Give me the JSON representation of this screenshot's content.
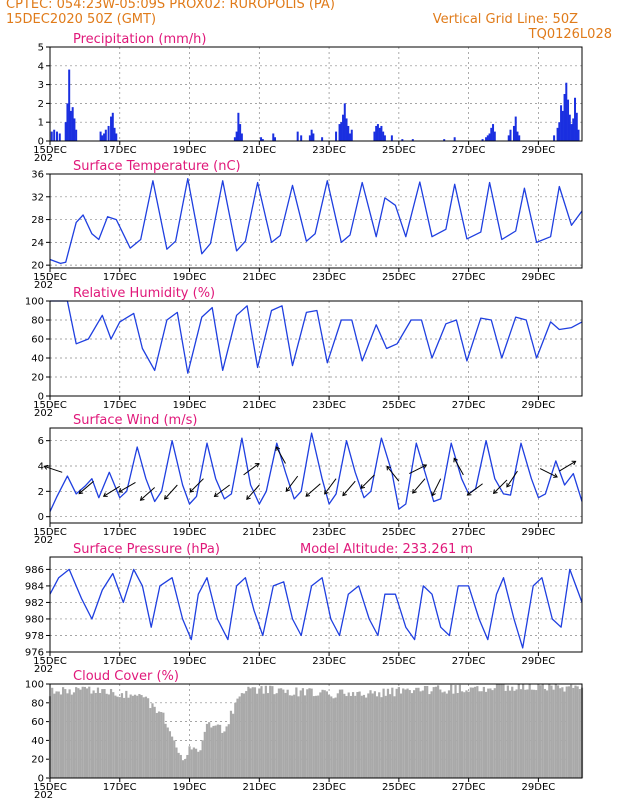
{
  "header": {
    "left_line1": "CPTEC:   054:23W-05:09S   PROX02: RUROPOLIS (PA)",
    "left_line2": "15DEC2020 50Z (GMT)",
    "right_line2": "Vertical Grid Line: 50Z",
    "right_line3": "TQ0126L028"
  },
  "colors": {
    "header": "#e07b1a",
    "title": "#e0187a",
    "line": "#1f3fe0",
    "bar": "#1a2fe0",
    "cloud": "#a9a9a9",
    "axis": "#000000"
  },
  "x_axis": {
    "tick_labels": [
      "15DEC",
      "17DEC",
      "19DEC",
      "21DEC",
      "23DEC",
      "25DEC",
      "27DEC",
      "29DEC"
    ],
    "sub_label": "202",
    "range_days": [
      0,
      15.25
    ],
    "tick_days": [
      0,
      2,
      4,
      6,
      8,
      10,
      12,
      14
    ]
  },
  "chart_data": [
    {
      "id": "precip",
      "type": "bar",
      "title": "Precipitation (mm/h)",
      "ylim": [
        0,
        5
      ],
      "yticks": [
        0,
        1,
        2,
        3,
        4,
        5
      ],
      "events": [
        {
          "t": 0.05,
          "v": 0.5
        },
        {
          "t": 0.12,
          "v": 0.6
        },
        {
          "t": 0.2,
          "v": 0.5
        },
        {
          "t": 0.28,
          "v": 0.4
        },
        {
          "t": 0.45,
          "v": 1.0
        },
        {
          "t": 0.5,
          "v": 2.0
        },
        {
          "t": 0.55,
          "v": 3.8
        },
        {
          "t": 0.6,
          "v": 1.6
        },
        {
          "t": 0.65,
          "v": 1.8
        },
        {
          "t": 0.7,
          "v": 1.2
        },
        {
          "t": 0.75,
          "v": 0.6
        },
        {
          "t": 1.45,
          "v": 0.5
        },
        {
          "t": 1.5,
          "v": 0.3
        },
        {
          "t": 1.55,
          "v": 0.4
        },
        {
          "t": 1.6,
          "v": 0.6
        },
        {
          "t": 1.68,
          "v": 0.8
        },
        {
          "t": 1.75,
          "v": 1.3
        },
        {
          "t": 1.8,
          "v": 1.5
        },
        {
          "t": 1.85,
          "v": 0.7
        },
        {
          "t": 1.9,
          "v": 0.4
        },
        {
          "t": 5.3,
          "v": 0.2
        },
        {
          "t": 5.35,
          "v": 0.5
        },
        {
          "t": 5.4,
          "v": 1.5
        },
        {
          "t": 5.45,
          "v": 0.9
        },
        {
          "t": 5.5,
          "v": 0.4
        },
        {
          "t": 6.05,
          "v": 0.2
        },
        {
          "t": 6.1,
          "v": 0.1
        },
        {
          "t": 6.4,
          "v": 0.4
        },
        {
          "t": 6.45,
          "v": 0.2
        },
        {
          "t": 7.1,
          "v": 0.5
        },
        {
          "t": 7.2,
          "v": 0.3
        },
        {
          "t": 7.45,
          "v": 0.3
        },
        {
          "t": 7.5,
          "v": 0.6
        },
        {
          "t": 7.55,
          "v": 0.4
        },
        {
          "t": 7.8,
          "v": 0.2
        },
        {
          "t": 8.2,
          "v": 0.5
        },
        {
          "t": 8.3,
          "v": 0.9
        },
        {
          "t": 8.35,
          "v": 1.0
        },
        {
          "t": 8.4,
          "v": 1.4
        },
        {
          "t": 8.45,
          "v": 2.0
        },
        {
          "t": 8.5,
          "v": 1.2
        },
        {
          "t": 8.55,
          "v": 0.8
        },
        {
          "t": 8.6,
          "v": 0.4
        },
        {
          "t": 8.65,
          "v": 0.6
        },
        {
          "t": 9.3,
          "v": 0.5
        },
        {
          "t": 9.35,
          "v": 0.8
        },
        {
          "t": 9.4,
          "v": 0.9
        },
        {
          "t": 9.45,
          "v": 0.7
        },
        {
          "t": 9.5,
          "v": 0.8
        },
        {
          "t": 9.55,
          "v": 0.5
        },
        {
          "t": 9.6,
          "v": 0.3
        },
        {
          "t": 9.8,
          "v": 0.3
        },
        {
          "t": 10.1,
          "v": 0.1
        },
        {
          "t": 10.4,
          "v": 0.1
        },
        {
          "t": 11.3,
          "v": 0.1
        },
        {
          "t": 11.6,
          "v": 0.2
        },
        {
          "t": 12.4,
          "v": 0.1
        },
        {
          "t": 12.5,
          "v": 0.2
        },
        {
          "t": 12.55,
          "v": 0.3
        },
        {
          "t": 12.6,
          "v": 0.4
        },
        {
          "t": 12.65,
          "v": 0.7
        },
        {
          "t": 12.7,
          "v": 0.9
        },
        {
          "t": 12.75,
          "v": 0.5
        },
        {
          "t": 13.15,
          "v": 0.3
        },
        {
          "t": 13.2,
          "v": 0.6
        },
        {
          "t": 13.3,
          "v": 0.8
        },
        {
          "t": 13.35,
          "v": 1.3
        },
        {
          "t": 13.4,
          "v": 0.5
        },
        {
          "t": 13.45,
          "v": 0.3
        },
        {
          "t": 14.45,
          "v": 0.3
        },
        {
          "t": 14.55,
          "v": 0.7
        },
        {
          "t": 14.6,
          "v": 1.0
        },
        {
          "t": 14.65,
          "v": 1.9
        },
        {
          "t": 14.7,
          "v": 1.6
        },
        {
          "t": 14.75,
          "v": 2.5
        },
        {
          "t": 14.8,
          "v": 3.1
        },
        {
          "t": 14.85,
          "v": 2.2
        },
        {
          "t": 14.9,
          "v": 1.4
        },
        {
          "t": 14.95,
          "v": 0.9
        },
        {
          "t": 15.0,
          "v": 1.2
        },
        {
          "t": 15.05,
          "v": 2.3
        },
        {
          "t": 15.1,
          "v": 1.5
        },
        {
          "t": 15.15,
          "v": 0.6
        }
      ]
    },
    {
      "id": "temp",
      "type": "line",
      "title": "Surface Temperature (nC)",
      "ylim": [
        19.5,
        36
      ],
      "yticks": [
        20,
        24,
        28,
        32,
        36
      ],
      "series": [
        {
          "x": [
            0,
            0.3,
            0.45,
            0.75,
            0.95,
            1.2,
            1.4,
            1.65,
            1.9,
            2.3,
            2.6,
            2.95,
            3.35,
            3.6,
            3.95,
            4.35,
            4.6,
            4.95,
            5.35,
            5.6,
            5.95,
            6.35,
            6.6,
            6.95,
            7.35,
            7.6,
            7.95,
            8.35,
            8.6,
            8.95,
            9.35,
            9.6,
            9.9,
            10.2,
            10.6,
            10.95,
            11.35,
            11.6,
            11.95,
            12.35,
            12.6,
            12.95,
            13.35,
            13.6,
            13.95,
            14.35,
            14.6,
            14.95,
            15.25
          ],
          "y": [
            21,
            20.3,
            20.5,
            27.5,
            28.8,
            25.5,
            24.5,
            28.5,
            28.0,
            23.0,
            24.5,
            34.8,
            22.8,
            24.2,
            35.2,
            22.0,
            23.8,
            34.8,
            22.5,
            24.2,
            34.5,
            24.0,
            25.2,
            34.0,
            24.2,
            25.5,
            34.8,
            24.0,
            25.3,
            34.5,
            25.0,
            31.8,
            30.5,
            25.0,
            34.6,
            25.0,
            26.3,
            34.2,
            24.6,
            25.8,
            34.5,
            24.5,
            26.0,
            33.5,
            24.0,
            25.0,
            33.8,
            27.0,
            29.5
          ]
        }
      ]
    },
    {
      "id": "rh",
      "type": "line",
      "title": "Relative Humidity (%)",
      "ylim": [
        0,
        100
      ],
      "yticks": [
        0,
        20,
        40,
        60,
        80,
        100
      ],
      "series": [
        {
          "x": [
            0,
            0.5,
            0.75,
            1.1,
            1.5,
            1.75,
            2.0,
            2.4,
            2.65,
            3.0,
            3.35,
            3.65,
            3.95,
            4.35,
            4.65,
            4.95,
            5.35,
            5.65,
            5.95,
            6.35,
            6.65,
            6.95,
            7.35,
            7.65,
            7.95,
            8.35,
            8.65,
            8.95,
            9.35,
            9.65,
            9.95,
            10.35,
            10.65,
            10.95,
            11.35,
            11.65,
            11.95,
            12.35,
            12.65,
            12.95,
            13.35,
            13.65,
            13.95,
            14.35,
            14.6,
            14.95,
            15.25
          ],
          "y": [
            100,
            100,
            55,
            60,
            85,
            60,
            78,
            87,
            50,
            27,
            80,
            88,
            24,
            83,
            93,
            27,
            85,
            95,
            30,
            90,
            95,
            32,
            88,
            90,
            35,
            80,
            80,
            37,
            75,
            50,
            55,
            80,
            80,
            40,
            76,
            80,
            37,
            82,
            80,
            40,
            83,
            80,
            40,
            78,
            70,
            72,
            78
          ]
        }
      ]
    },
    {
      "id": "wind",
      "type": "line",
      "title": "Surface Wind (m/s)",
      "ylim": [
        -0.5,
        7
      ],
      "yticks": [
        0,
        2,
        4,
        6
      ],
      "series": [
        {
          "x": [
            0,
            0.2,
            0.5,
            0.75,
            1.0,
            1.2,
            1.4,
            1.7,
            2.0,
            2.2,
            2.5,
            2.75,
            3.0,
            3.2,
            3.5,
            3.8,
            4.0,
            4.2,
            4.5,
            4.75,
            5.0,
            5.2,
            5.5,
            5.75,
            6.0,
            6.2,
            6.5,
            6.75,
            7.0,
            7.2,
            7.5,
            7.8,
            8.0,
            8.2,
            8.5,
            8.75,
            9.0,
            9.2,
            9.5,
            9.8,
            10.0,
            10.2,
            10.5,
            10.75,
            11.0,
            11.2,
            11.5,
            11.8,
            12.0,
            12.2,
            12.5,
            12.75,
            13.0,
            13.2,
            13.5,
            13.8,
            14.0,
            14.2,
            14.5,
            14.75,
            15.0,
            15.25
          ],
          "y": [
            0.4,
            1.6,
            3.2,
            1.8,
            2.4,
            3.0,
            1.5,
            3.5,
            1.5,
            2.0,
            5.5,
            3.0,
            1.2,
            2.0,
            6.0,
            2.5,
            1.0,
            1.6,
            5.8,
            3.0,
            1.4,
            1.8,
            6.2,
            2.5,
            1.0,
            2.0,
            5.8,
            3.5,
            1.4,
            2.0,
            6.6,
            3.0,
            1.0,
            1.8,
            6.0,
            3.5,
            1.5,
            2.0,
            6.2,
            3.5,
            0.6,
            1.0,
            5.8,
            3.5,
            1.2,
            1.4,
            5.8,
            3.0,
            1.8,
            2.2,
            6.0,
            3.0,
            1.8,
            1.7,
            5.8,
            3.0,
            1.5,
            1.8,
            4.4,
            2.5,
            3.4,
            1.2
          ]
        }
      ],
      "barbs": [
        {
          "t": 0.35,
          "v": 3.5,
          "dx": -0.9,
          "dy": 0.3
        },
        {
          "t": 1.25,
          "v": 2.8,
          "dx": -0.7,
          "dy": -0.6
        },
        {
          "t": 2.0,
          "v": 2.4,
          "dx": -0.8,
          "dy": -0.5
        },
        {
          "t": 2.45,
          "v": 2.7,
          "dx": -0.7,
          "dy": -0.4
        },
        {
          "t": 3.0,
          "v": 2.3,
          "dx": -0.9,
          "dy": -0.8
        },
        {
          "t": 3.65,
          "v": 2.5,
          "dx": -0.9,
          "dy": -1.0
        },
        {
          "t": 4.4,
          "v": 3.0,
          "dx": -1.0,
          "dy": -1.0
        },
        {
          "t": 5.15,
          "v": 2.5,
          "dx": -0.8,
          "dy": -0.6
        },
        {
          "t": 5.55,
          "v": 3.3,
          "dx": 0.4,
          "dy": 0.3
        },
        {
          "t": 6.0,
          "v": 2.5,
          "dx": -0.7,
          "dy": -0.8
        },
        {
          "t": 6.75,
          "v": 4.2,
          "dx": -0.5,
          "dy": 0.9
        },
        {
          "t": 7.1,
          "v": 3.2,
          "dx": -0.6,
          "dy": -0.8
        },
        {
          "t": 7.75,
          "v": 2.6,
          "dx": -0.8,
          "dy": -0.7
        },
        {
          "t": 8.2,
          "v": 3.0,
          "dx": -0.6,
          "dy": -0.8
        },
        {
          "t": 8.75,
          "v": 2.8,
          "dx": -0.6,
          "dy": -0.7
        },
        {
          "t": 9.3,
          "v": 3.3,
          "dx": -0.5,
          "dy": -0.5
        },
        {
          "t": 10.0,
          "v": 2.8,
          "dx": -0.4,
          "dy": 0.5
        },
        {
          "t": 10.3,
          "v": 3.4,
          "dx": 0.4,
          "dy": 0.2
        },
        {
          "t": 10.75,
          "v": 3.0,
          "dx": -0.6,
          "dy": -0.7
        },
        {
          "t": 11.2,
          "v": 3.0,
          "dx": -0.3,
          "dy": -0.6
        },
        {
          "t": 11.85,
          "v": 3.3,
          "dx": -0.5,
          "dy": 0.9
        },
        {
          "t": 12.4,
          "v": 2.6,
          "dx": -0.8,
          "dy": -0.6
        },
        {
          "t": 13.1,
          "v": 2.9,
          "dx": -0.7,
          "dy": -0.7
        },
        {
          "t": 13.4,
          "v": 3.6,
          "dx": -0.4,
          "dy": -0.6
        },
        {
          "t": 14.05,
          "v": 3.8,
          "dx": 0.6,
          "dy": -0.3
        },
        {
          "t": 14.6,
          "v": 3.6,
          "dx": 0.5,
          "dy": 0.3
        }
      ]
    },
    {
      "id": "pres",
      "type": "line",
      "title": "Surface Pressure (hPa)",
      "annotation": "Model Altitude: 233.261 m",
      "ylim": [
        976,
        987.5
      ],
      "yticks": [
        976,
        978,
        980,
        982,
        984,
        986
      ],
      "series": [
        {
          "x": [
            0,
            0.25,
            0.55,
            0.9,
            1.2,
            1.5,
            1.8,
            2.1,
            2.4,
            2.65,
            2.9,
            3.15,
            3.5,
            3.8,
            4.05,
            4.25,
            4.5,
            4.8,
            5.1,
            5.35,
            5.6,
            5.85,
            6.1,
            6.4,
            6.7,
            6.95,
            7.2,
            7.5,
            7.8,
            8.05,
            8.3,
            8.55,
            8.85,
            9.15,
            9.4,
            9.6,
            9.9,
            10.2,
            10.45,
            10.7,
            10.95,
            11.2,
            11.45,
            11.7,
            12.0,
            12.3,
            12.55,
            12.8,
            13.0,
            13.3,
            13.55,
            13.85,
            14.1,
            14.4,
            14.65,
            14.9,
            15.25
          ],
          "y": [
            983,
            985,
            986,
            982.5,
            980,
            983.5,
            985.5,
            982,
            986,
            984,
            979,
            984,
            985,
            980,
            977.5,
            983,
            985,
            980,
            977.5,
            984,
            985,
            981,
            978,
            984,
            984.5,
            980,
            978,
            984,
            985,
            980,
            978,
            983,
            984,
            980,
            978,
            983,
            983,
            979,
            977.5,
            984,
            983,
            979,
            978,
            984,
            984,
            980,
            977.5,
            983,
            985,
            980,
            976.5,
            984,
            985,
            980,
            979,
            986,
            982
          ]
        }
      ]
    },
    {
      "id": "cloud",
      "type": "bar",
      "title": "Cloud Cover (%)",
      "ylim": [
        0,
        100
      ],
      "yticks": [
        0,
        20,
        40,
        60,
        80,
        100
      ],
      "profile": [
        {
          "t": 0,
          "v": 92
        },
        {
          "t": 1.5,
          "v": 93
        },
        {
          "t": 2.5,
          "v": 88
        },
        {
          "t": 3.2,
          "v": 70
        },
        {
          "t": 3.6,
          "v": 40
        },
        {
          "t": 3.8,
          "v": 15
        },
        {
          "t": 4.0,
          "v": 35
        },
        {
          "t": 4.3,
          "v": 25
        },
        {
          "t": 4.5,
          "v": 60
        },
        {
          "t": 5.0,
          "v": 50
        },
        {
          "t": 5.5,
          "v": 95
        },
        {
          "t": 7.0,
          "v": 92
        },
        {
          "t": 9.0,
          "v": 88
        },
        {
          "t": 10.0,
          "v": 92
        },
        {
          "t": 12.0,
          "v": 95
        },
        {
          "t": 14.0,
          "v": 98
        },
        {
          "t": 15.25,
          "v": 96
        }
      ]
    }
  ]
}
